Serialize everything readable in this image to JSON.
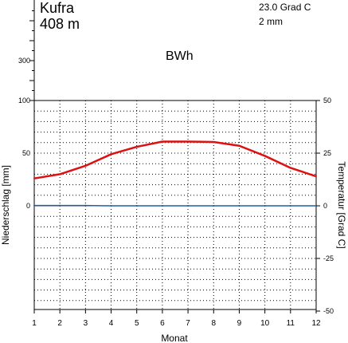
{
  "header": {
    "station": "Kufra",
    "elevation": "408 m",
    "annual_temp": "23.0 Grad C",
    "annual_precip": "2 mm",
    "climate_class": "BWh"
  },
  "chart_data": {
    "type": "line",
    "xlabel": "Monat",
    "ylabel_left": "Niederschlag [mm]",
    "ylabel_right": "Temperatur [Grad C]",
    "categories": [
      1,
      2,
      3,
      4,
      5,
      6,
      7,
      8,
      9,
      10,
      11,
      12
    ],
    "x_tick_labels": [
      "1",
      "2",
      "3",
      "4",
      "5",
      "6",
      "7",
      "8",
      "9",
      "10",
      "11",
      "12"
    ],
    "left_tick_labels": [
      {
        "value": 300,
        "label": "300"
      },
      {
        "value": 100,
        "label": "100"
      },
      {
        "value": 50,
        "label": "50"
      },
      {
        "value": 0,
        "label": "0"
      }
    ],
    "right_tick_labels": [
      {
        "value": 50,
        "label": "50"
      },
      {
        "value": 25,
        "label": "25"
      },
      {
        "value": 0,
        "label": "0"
      },
      {
        "value": -25,
        "label": "-25"
      },
      {
        "value": -50,
        "label": "-50"
      }
    ],
    "temp_ylim": [
      -50,
      50
    ],
    "precip_ylim": [
      0,
      100
    ],
    "grid": true,
    "series": [
      {
        "color": "#dd1111",
        "axis": "right",
        "values": [
          13.0,
          15.0,
          19.0,
          24.5,
          28.0,
          30.5,
          30.5,
          30.3,
          28.5,
          23.7,
          18.0,
          14.0
        ]
      },
      {
        "color": "#1f5fa8",
        "axis": "left",
        "values": [
          0.3,
          0.3,
          0.3,
          0.0,
          0.0,
          0.0,
          0.0,
          0.0,
          0.0,
          0.0,
          0.0,
          0.0
        ]
      }
    ]
  }
}
